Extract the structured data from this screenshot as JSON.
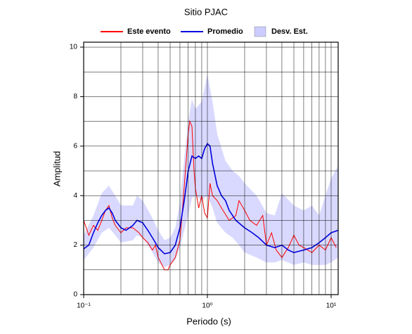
{
  "chart_data": {
    "type": "line",
    "title": "Sitio PJAC",
    "x_label": "Periodo (s)",
    "y_label": "Amplitud",
    "x_log": true,
    "xlim": [
      0.1,
      11.4
    ],
    "ylim": [
      0,
      10.2
    ],
    "xticks": [
      {
        "value": 0.1,
        "label": "10⁻¹"
      },
      {
        "value": 1,
        "label": "10⁰"
      },
      {
        "value": 10,
        "label": "10¹"
      }
    ],
    "xgrid": [
      0.2,
      0.3,
      0.4,
      0.5,
      0.6,
      0.7,
      0.8,
      0.9,
      2,
      3,
      4,
      5,
      6,
      7,
      8,
      9
    ],
    "yticks": [
      0,
      2,
      4,
      6,
      8,
      10
    ],
    "ygrid": [
      1,
      3,
      5,
      7,
      9
    ],
    "grid": true,
    "legend": "top",
    "series": [
      {
        "name": "Este evento",
        "color": "#ff0000",
        "x": [
          0.1,
          0.105,
          0.11,
          0.12,
          0.13,
          0.14,
          0.15,
          0.16,
          0.17,
          0.18,
          0.2,
          0.22,
          0.25,
          0.28,
          0.3,
          0.33,
          0.36,
          0.38,
          0.4,
          0.42,
          0.45,
          0.48,
          0.5,
          0.55,
          0.6,
          0.63,
          0.66,
          0.7,
          0.72,
          0.75,
          0.78,
          0.8,
          0.85,
          0.9,
          0.95,
          1.0,
          1.05,
          1.1,
          1.2,
          1.3,
          1.5,
          1.7,
          1.8,
          2.0,
          2.2,
          2.5,
          2.8,
          3.0,
          3.3,
          3.6,
          4.0,
          4.5,
          5.0,
          5.5,
          6.0,
          7.0,
          8.0,
          9.0,
          10,
          11
        ],
        "values": [
          3.0,
          2.7,
          2.4,
          2.8,
          2.6,
          3.0,
          3.4,
          3.6,
          3.1,
          2.8,
          2.5,
          2.7,
          2.7,
          2.5,
          2.3,
          2.1,
          1.8,
          2.0,
          1.5,
          1.3,
          1.0,
          1.0,
          1.2,
          1.5,
          2.2,
          3.5,
          4.8,
          6.5,
          7.0,
          6.8,
          5.0,
          4.3,
          3.5,
          4.0,
          3.3,
          3.1,
          4.5,
          4.0,
          3.8,
          3.5,
          3.0,
          3.2,
          3.8,
          3.4,
          3.0,
          2.8,
          3.2,
          2.0,
          2.5,
          1.8,
          1.5,
          1.9,
          2.4,
          2.0,
          1.9,
          1.7,
          2.0,
          1.8,
          2.3,
          1.9
        ]
      },
      {
        "name": "Promedio",
        "color": "#0000dd",
        "x": [
          0.1,
          0.11,
          0.12,
          0.13,
          0.14,
          0.15,
          0.16,
          0.17,
          0.18,
          0.2,
          0.22,
          0.25,
          0.27,
          0.3,
          0.33,
          0.37,
          0.4,
          0.45,
          0.5,
          0.55,
          0.6,
          0.65,
          0.7,
          0.75,
          0.8,
          0.85,
          0.9,
          0.95,
          1.0,
          1.05,
          1.1,
          1.2,
          1.3,
          1.4,
          1.5,
          1.7,
          2.0,
          2.3,
          2.6,
          3.0,
          3.5,
          4.0,
          4.5,
          5.0,
          6.0,
          7.0,
          8.0,
          9.0,
          10,
          11.4
        ],
        "values": [
          1.85,
          2.0,
          2.5,
          2.9,
          3.2,
          3.4,
          3.5,
          3.3,
          3.0,
          2.7,
          2.6,
          2.8,
          3.0,
          2.9,
          2.6,
          2.2,
          1.9,
          1.65,
          1.7,
          2.0,
          2.7,
          3.8,
          5.0,
          5.6,
          5.5,
          5.6,
          5.5,
          5.9,
          6.1,
          6.0,
          5.3,
          4.4,
          4.0,
          3.8,
          3.4,
          3.0,
          2.7,
          2.5,
          2.3,
          2.0,
          1.9,
          2.0,
          1.8,
          1.7,
          1.8,
          1.9,
          2.1,
          2.3,
          2.5,
          2.6
        ]
      },
      {
        "name": "Desv. Est.",
        "color": "#ccccff",
        "type": "band",
        "x": [
          0.1,
          0.12,
          0.14,
          0.16,
          0.18,
          0.2,
          0.25,
          0.27,
          0.3,
          0.35,
          0.4,
          0.45,
          0.5,
          0.55,
          0.6,
          0.65,
          0.7,
          0.75,
          0.8,
          0.9,
          1.0,
          1.1,
          1.2,
          1.4,
          1.6,
          1.8,
          2.0,
          2.5,
          3.0,
          3.5,
          4.0,
          5.0,
          6.0,
          7.0,
          8.0,
          9.0,
          10,
          11.4
        ],
        "lower": [
          1.4,
          1.9,
          2.5,
          2.7,
          2.4,
          2.1,
          2.2,
          2.4,
          2.3,
          1.8,
          1.3,
          1.1,
          1.2,
          1.4,
          1.9,
          2.6,
          3.2,
          3.9,
          4.0,
          3.8,
          4.0,
          3.5,
          2.9,
          2.5,
          2.3,
          2.0,
          1.7,
          1.5,
          1.3,
          1.3,
          1.4,
          1.2,
          1.3,
          1.2,
          1.2,
          1.2,
          1.3,
          1.5
        ],
        "upper": [
          2.4,
          3.2,
          4.1,
          4.4,
          4.0,
          3.6,
          3.6,
          4.0,
          3.8,
          3.2,
          2.6,
          2.2,
          2.3,
          2.7,
          3.7,
          5.5,
          7.0,
          7.9,
          7.5,
          7.8,
          8.9,
          7.8,
          6.5,
          5.4,
          5.0,
          4.8,
          4.5,
          4.0,
          3.3,
          3.2,
          4.1,
          3.6,
          3.4,
          3.6,
          3.2,
          4.0,
          4.7,
          5.2
        ]
      }
    ]
  }
}
